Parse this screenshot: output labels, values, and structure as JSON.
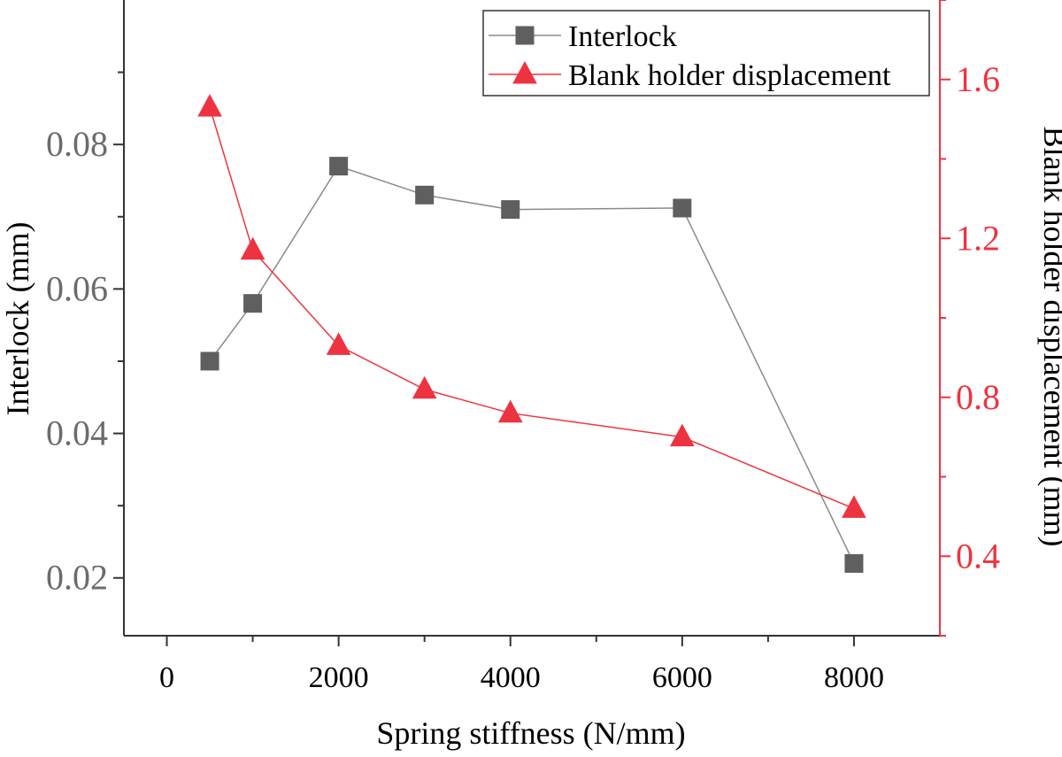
{
  "chart_data": {
    "type": "line",
    "xlabel": "Spring stiffness (N/mm)",
    "ylabel_left": "Interlock (mm)",
    "ylabel_right": "Blank holder displacement (mm)",
    "xlim": [
      -500,
      9000
    ],
    "ylim_left": [
      0.012,
      0.1
    ],
    "ylim_right": [
      0.2,
      1.8
    ],
    "x_ticks": [
      0,
      2000,
      4000,
      6000,
      8000
    ],
    "y_ticks_left": [
      0.02,
      0.04,
      0.06,
      0.08
    ],
    "y_ticks_left_labels": [
      "0.02",
      "0.04",
      "0.06",
      "0.08"
    ],
    "y_ticks_right": [
      0.4,
      0.8,
      1.2,
      1.6
    ],
    "y_ticks_right_labels": [
      "0.4",
      "0.8",
      "1.2",
      "1.6"
    ],
    "legend_position": "top-right",
    "grid": false,
    "series": [
      {
        "name": "Interlock",
        "axis": "left",
        "marker": "square",
        "color": "#5f5f5f",
        "line_color": "#8a8a8a",
        "x": [
          500,
          1000,
          2000,
          3000,
          4000,
          6000,
          8000
        ],
        "y": [
          0.05,
          0.058,
          0.077,
          0.073,
          0.071,
          0.0712,
          0.022
        ]
      },
      {
        "name": "Blank holder displacement",
        "axis": "right",
        "marker": "triangle",
        "color": "#ee3340",
        "line_color": "#ee3340",
        "x": [
          500,
          1000,
          2000,
          3000,
          4000,
          6000,
          8000
        ],
        "y": [
          1.53,
          1.17,
          0.93,
          0.82,
          0.76,
          0.7,
          0.52
        ]
      }
    ]
  },
  "colors": {
    "left_axis": "#6b6b6b",
    "right_axis": "#ee3340",
    "frame": "#333333"
  }
}
